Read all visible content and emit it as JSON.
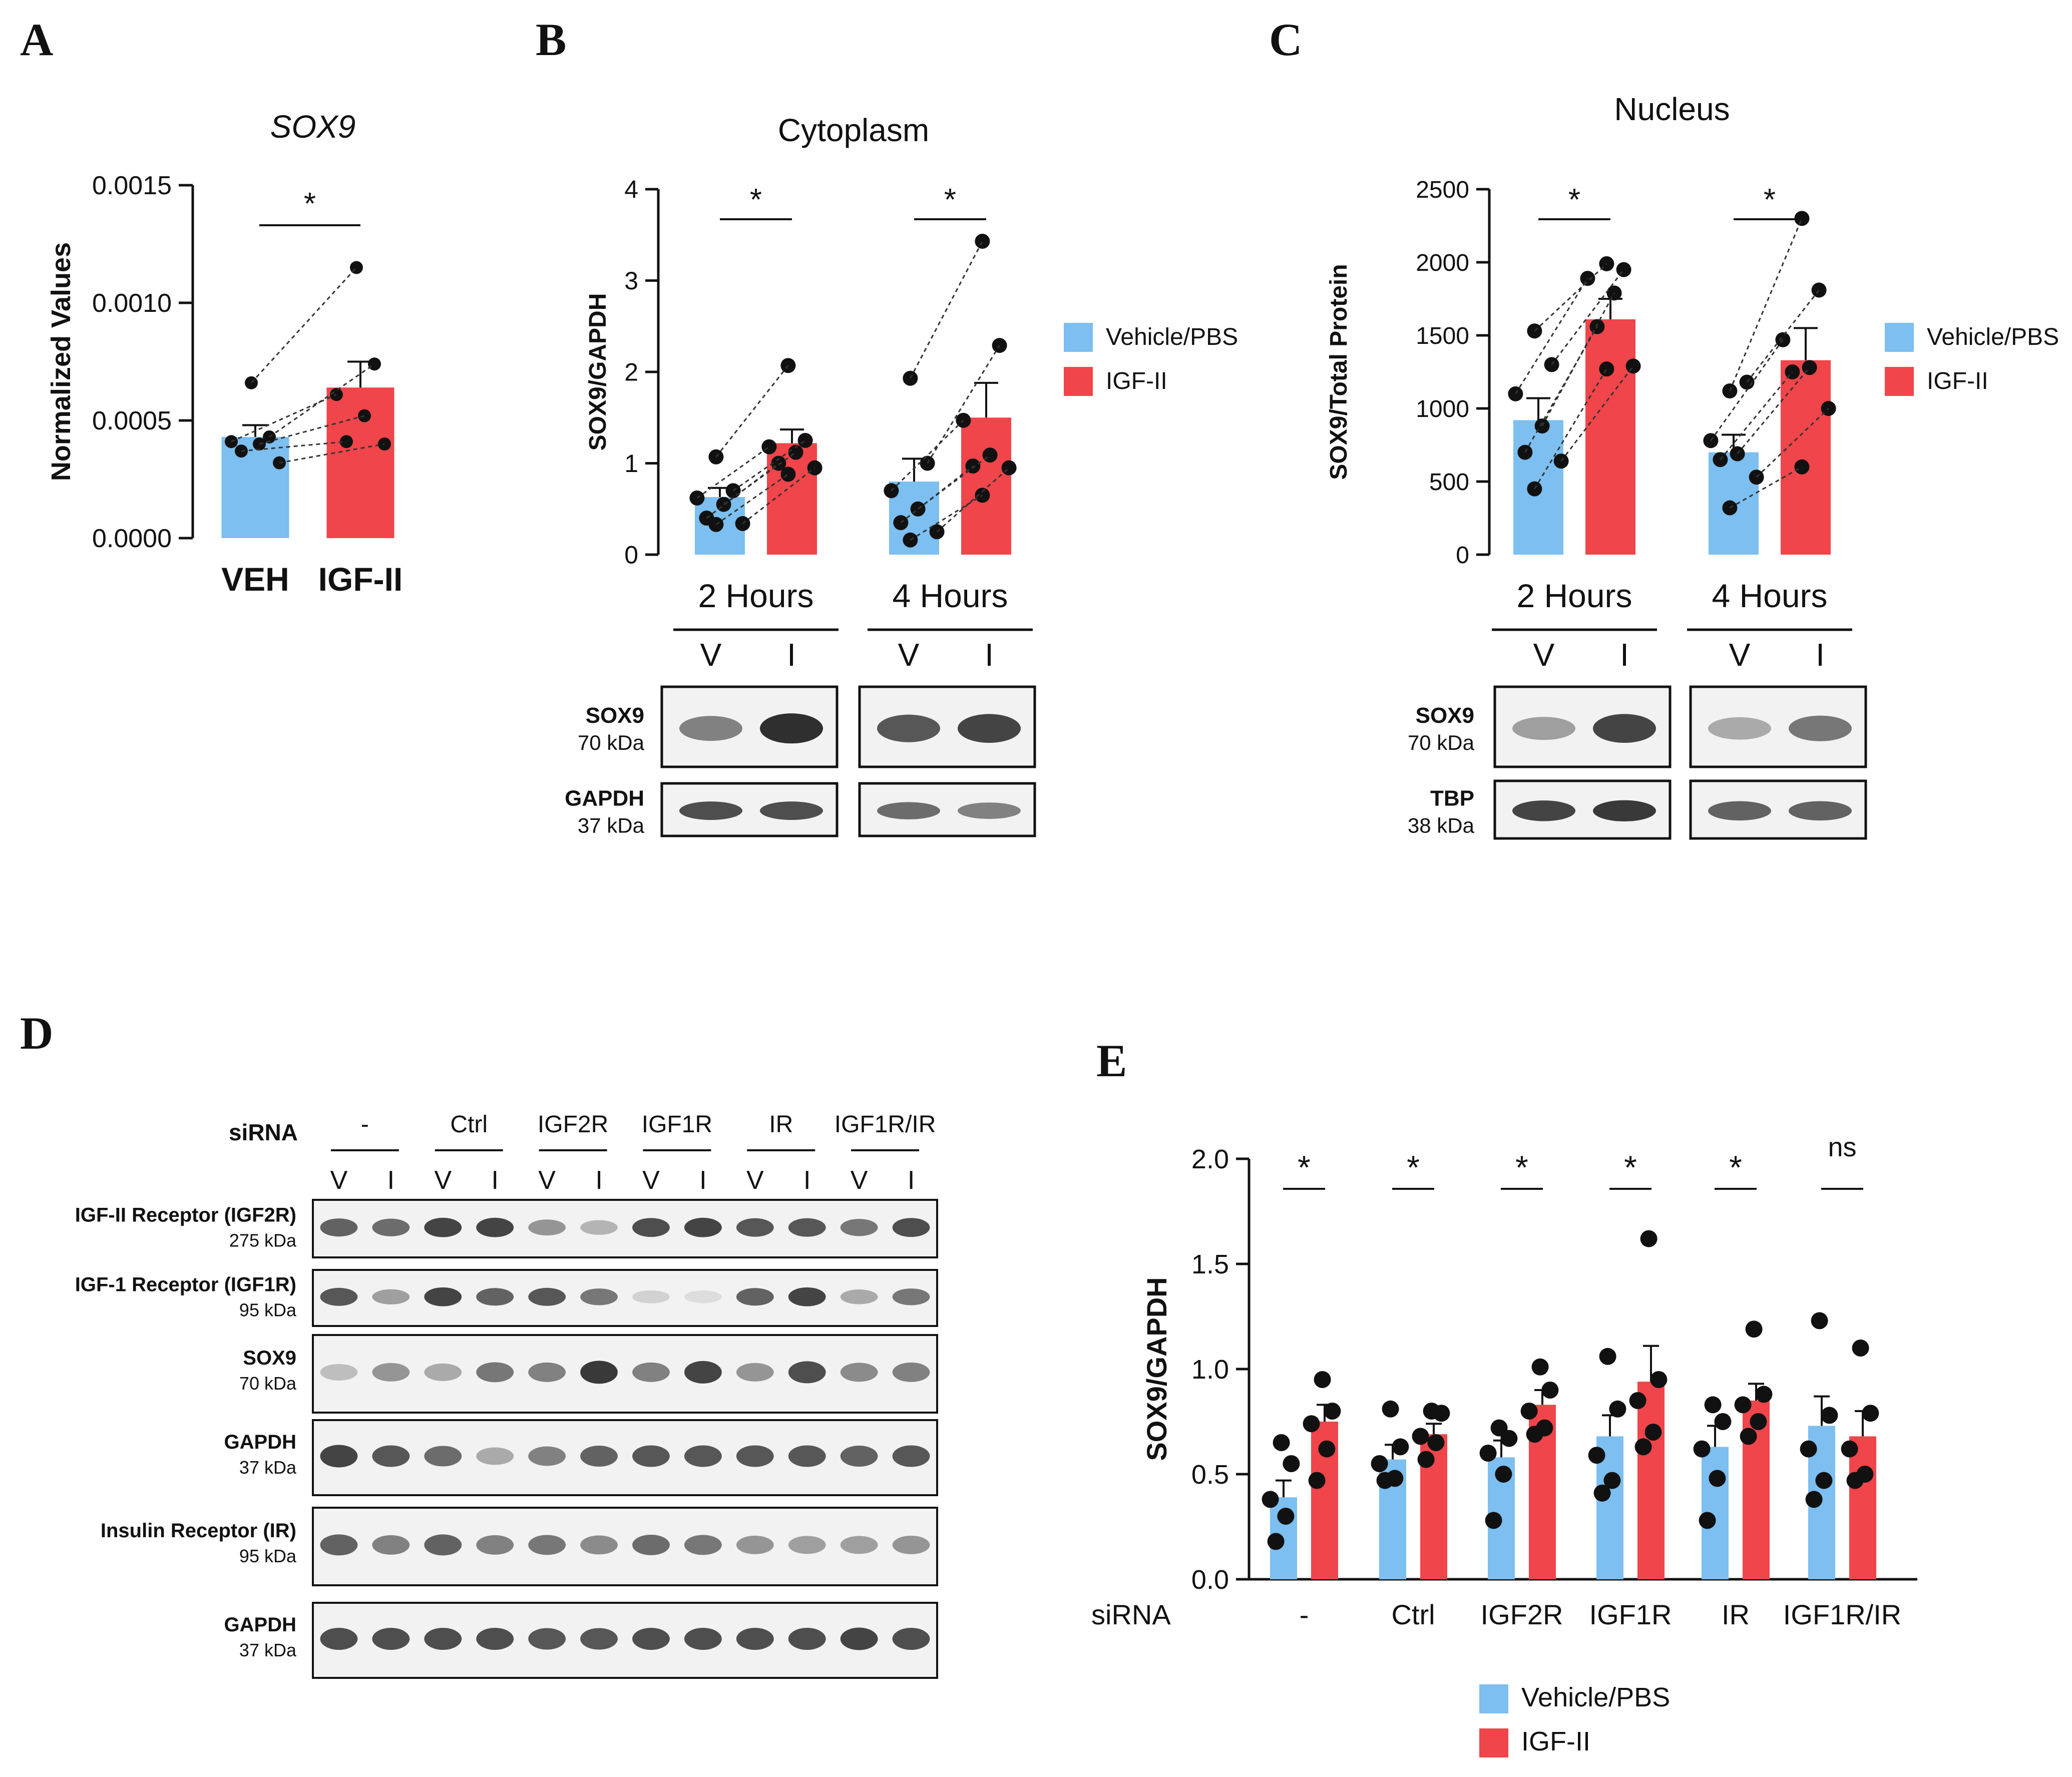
{
  "colors": {
    "vehicle": "#7cbff0",
    "igf": "#f0454a",
    "dot": "#111111",
    "axis": "#111111",
    "blot_bg": "#e9e9e9"
  },
  "panels": {
    "A": "A",
    "B": "B",
    "C": "C",
    "D": "D",
    "E": "E"
  },
  "chart_data": [
    {
      "id": "A",
      "type": "bar",
      "title": "SOX9",
      "ylabel": "Normalized Values",
      "xlabel": "",
      "ylim": [
        0,
        0.0015
      ],
      "ytick_labels": [
        "0.0000",
        "0.0005",
        "0.0010",
        "0.0015"
      ],
      "categories": [
        "VEH",
        "IGF-II"
      ],
      "values": [
        0.00043,
        0.00064
      ],
      "errors": [
        5e-05,
        0.00011
      ],
      "points": [
        [
          0.00066,
          0.00043,
          0.00041,
          0.0004,
          0.00037,
          0.00032
        ],
        [
          0.00115,
          0.00074,
          0.00061,
          0.00052,
          0.00041,
          0.0004
        ]
      ],
      "significance": [
        "*"
      ]
    },
    {
      "id": "B",
      "type": "bar",
      "title": "Cytoplasm",
      "ylabel": "SOX9/GAPDH",
      "ylim": [
        0,
        4
      ],
      "ytick_labels": [
        "0",
        "1",
        "2",
        "3",
        "4"
      ],
      "groups": [
        "2 Hours",
        "4 Hours"
      ],
      "series": [
        {
          "name": "Vehicle/PBS",
          "values": [
            0.63,
            0.8
          ],
          "errors": [
            0.1,
            0.25
          ],
          "points": [
            [
              1.07,
              0.7,
              0.62,
              0.55,
              0.4,
              0.34,
              0.33
            ],
            [
              1.93,
              1.0,
              0.7,
              0.5,
              0.35,
              0.25,
              0.16
            ]
          ]
        },
        {
          "name": "IGF-II",
          "values": [
            1.22,
            1.5
          ],
          "errors": [
            0.15,
            0.38
          ],
          "points": [
            [
              2.07,
              1.25,
              1.18,
              1.12,
              1.0,
              0.95,
              0.88
            ],
            [
              3.43,
              2.29,
              1.47,
              1.09,
              0.97,
              0.95,
              0.65
            ]
          ]
        }
      ],
      "significance": [
        "*",
        "*"
      ],
      "legend": [
        "Vehicle/PBS",
        "IGF-II"
      ]
    },
    {
      "id": "C",
      "type": "bar",
      "title": "Nucleus",
      "ylabel": "SOX9/Total Protein",
      "ylim": [
        0,
        2500
      ],
      "ytick_labels": [
        "0",
        "500",
        "1000",
        "1500",
        "2000",
        "2500"
      ],
      "groups": [
        "2 Hours",
        "4 Hours"
      ],
      "series": [
        {
          "name": "Vehicle/PBS",
          "values": [
            920,
            700
          ],
          "errors": [
            150,
            120
          ],
          "points": [
            [
              1530,
              1300,
              1100,
              880,
              700,
              640,
              450
            ],
            [
              1120,
              1180,
              780,
              690,
              650,
              530,
              320
            ]
          ]
        },
        {
          "name": "IGF-II",
          "values": [
            1610,
            1330
          ],
          "errors": [
            140,
            220
          ],
          "points": [
            [
              1990,
              1950,
              1890,
              1790,
              1560,
              1290,
              1270
            ],
            [
              2300,
              1810,
              1470,
              1280,
              1250,
              1000,
              600
            ]
          ]
        }
      ],
      "significance": [
        "*",
        "*"
      ],
      "legend": [
        "Vehicle/PBS",
        "IGF-II"
      ]
    },
    {
      "id": "E",
      "type": "bar",
      "title": "",
      "ylabel": "SOX9/GAPDH",
      "xlabel": "siRNA",
      "ylim": [
        0,
        2.0
      ],
      "ytick_labels": [
        "0.0",
        "0.5",
        "1.0",
        "1.5",
        "2.0"
      ],
      "categories": [
        "-",
        "Ctrl",
        "IGF2R",
        "IGF1R",
        "IR",
        "IGF1R/IR"
      ],
      "series": [
        {
          "name": "Vehicle/PBS",
          "values": [
            0.39,
            0.57,
            0.58,
            0.68,
            0.63,
            0.73
          ],
          "errors": [
            0.08,
            0.07,
            0.08,
            0.1,
            0.1,
            0.14
          ],
          "points": [
            [
              0.65,
              0.55,
              0.38,
              0.3,
              0.18
            ],
            [
              0.81,
              0.63,
              0.55,
              0.48,
              0.47
            ],
            [
              0.72,
              0.67,
              0.6,
              0.5,
              0.28
            ],
            [
              1.06,
              0.81,
              0.59,
              0.47,
              0.41
            ],
            [
              0.83,
              0.75,
              0.62,
              0.48,
              0.28
            ],
            [
              1.23,
              0.78,
              0.62,
              0.47,
              0.38
            ]
          ]
        },
        {
          "name": "IGF-II",
          "values": [
            0.75,
            0.69,
            0.83,
            0.94,
            0.85,
            0.68
          ],
          "errors": [
            0.08,
            0.05,
            0.07,
            0.17,
            0.08,
            0.12
          ],
          "points": [
            [
              0.95,
              0.8,
              0.74,
              0.62,
              0.47
            ],
            [
              0.8,
              0.79,
              0.68,
              0.65,
              0.57
            ],
            [
              1.01,
              0.9,
              0.8,
              0.72,
              0.69
            ],
            [
              1.62,
              0.95,
              0.85,
              0.7,
              0.63
            ],
            [
              1.19,
              0.88,
              0.83,
              0.75,
              0.68
            ],
            [
              1.1,
              0.79,
              0.62,
              0.5,
              0.47
            ]
          ]
        }
      ],
      "significance": [
        "*",
        "*",
        "*",
        "*",
        "*",
        "ns"
      ],
      "legend": [
        "Vehicle/PBS",
        "IGF-II"
      ]
    }
  ],
  "blots": {
    "B": {
      "timepoints": [
        "2 Hours",
        "4 Hours"
      ],
      "lanes": [
        "V",
        "I",
        "V",
        "I"
      ],
      "rows": [
        {
          "name": "SOX9",
          "size": "70 kDa",
          "intensity": [
            0.55,
            0.95,
            0.75,
            0.85
          ]
        },
        {
          "name": "GAPDH",
          "size": "37 kDa",
          "intensity": [
            0.8,
            0.8,
            0.65,
            0.55
          ]
        }
      ]
    },
    "C": {
      "timepoints": [
        "2 Hours",
        "4 Hours"
      ],
      "lanes": [
        "V",
        "I",
        "V",
        "I"
      ],
      "rows": [
        {
          "name": "SOX9",
          "size": "70 kDa",
          "intensity": [
            0.4,
            0.85,
            0.35,
            0.6
          ]
        },
        {
          "name": "TBP",
          "size": "38 kDa",
          "intensity": [
            0.85,
            0.9,
            0.7,
            0.7
          ]
        }
      ]
    },
    "D": {
      "siRNA_label": "siRNA",
      "groups": [
        "-",
        "Ctrl",
        "IGF2R",
        "IGF1R",
        "IR",
        "IGF1R/IR"
      ],
      "lanes": [
        "V",
        "I",
        "V",
        "I",
        "V",
        "I",
        "V",
        "I",
        "V",
        "I",
        "V",
        "I"
      ],
      "rows": [
        {
          "name": "IGF-II Receptor (IGF2R)",
          "size": "275 kDa",
          "intensity": [
            0.7,
            0.65,
            0.85,
            0.85,
            0.45,
            0.3,
            0.8,
            0.85,
            0.75,
            0.75,
            0.6,
            0.8
          ]
        },
        {
          "name": "IGF-1 Receptor (IGF1R)",
          "size": "95 kDa",
          "intensity": [
            0.75,
            0.4,
            0.85,
            0.7,
            0.75,
            0.6,
            0.15,
            0.1,
            0.7,
            0.85,
            0.35,
            0.6
          ]
        },
        {
          "name": "SOX9",
          "size": "70 kDa",
          "intensity": [
            0.25,
            0.45,
            0.35,
            0.6,
            0.55,
            0.9,
            0.55,
            0.85,
            0.45,
            0.8,
            0.5,
            0.55
          ]
        },
        {
          "name": "GAPDH",
          "size": "37 kDa",
          "intensity": [
            0.85,
            0.75,
            0.65,
            0.35,
            0.55,
            0.7,
            0.75,
            0.75,
            0.75,
            0.75,
            0.7,
            0.75
          ]
        },
        {
          "name": "Insulin Receptor (IR)",
          "size": "95 kDa",
          "intensity": [
            0.7,
            0.55,
            0.7,
            0.55,
            0.6,
            0.5,
            0.65,
            0.6,
            0.45,
            0.4,
            0.4,
            0.45
          ]
        },
        {
          "name": "GAPDH",
          "size": "37 kDa",
          "intensity": [
            0.8,
            0.8,
            0.8,
            0.8,
            0.75,
            0.75,
            0.8,
            0.8,
            0.8,
            0.8,
            0.85,
            0.8
          ]
        }
      ]
    }
  }
}
